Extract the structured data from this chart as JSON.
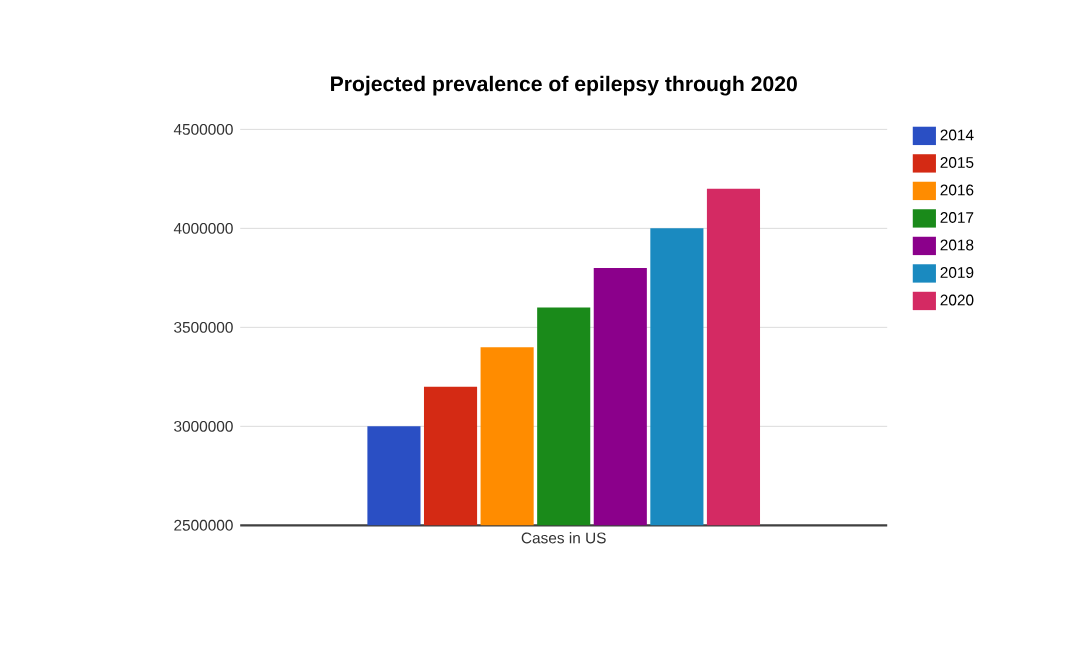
{
  "chart_data": {
    "type": "bar",
    "title": "Projected prevalence of epilepsy through 2020",
    "categories": [
      "Cases in US"
    ],
    "series": [
      {
        "name": "2014",
        "color": "#2a4fc4",
        "values": [
          3000000
        ]
      },
      {
        "name": "2015",
        "color": "#d42a14",
        "values": [
          3200000
        ]
      },
      {
        "name": "2016",
        "color": "#ff8c00",
        "values": [
          3400000
        ]
      },
      {
        "name": "2017",
        "color": "#1a8a1a",
        "values": [
          3600000
        ]
      },
      {
        "name": "2018",
        "color": "#8b008b",
        "values": [
          3800000
        ]
      },
      {
        "name": "2019",
        "color": "#1a8ac0",
        "values": [
          4000000
        ]
      },
      {
        "name": "2020",
        "color": "#d42a63",
        "values": [
          4200000
        ]
      }
    ],
    "ylim": [
      2500000,
      4500000
    ],
    "yticks": [
      2500000,
      3000000,
      3500000,
      4000000,
      4500000
    ],
    "grid": "y",
    "legend": "right"
  }
}
